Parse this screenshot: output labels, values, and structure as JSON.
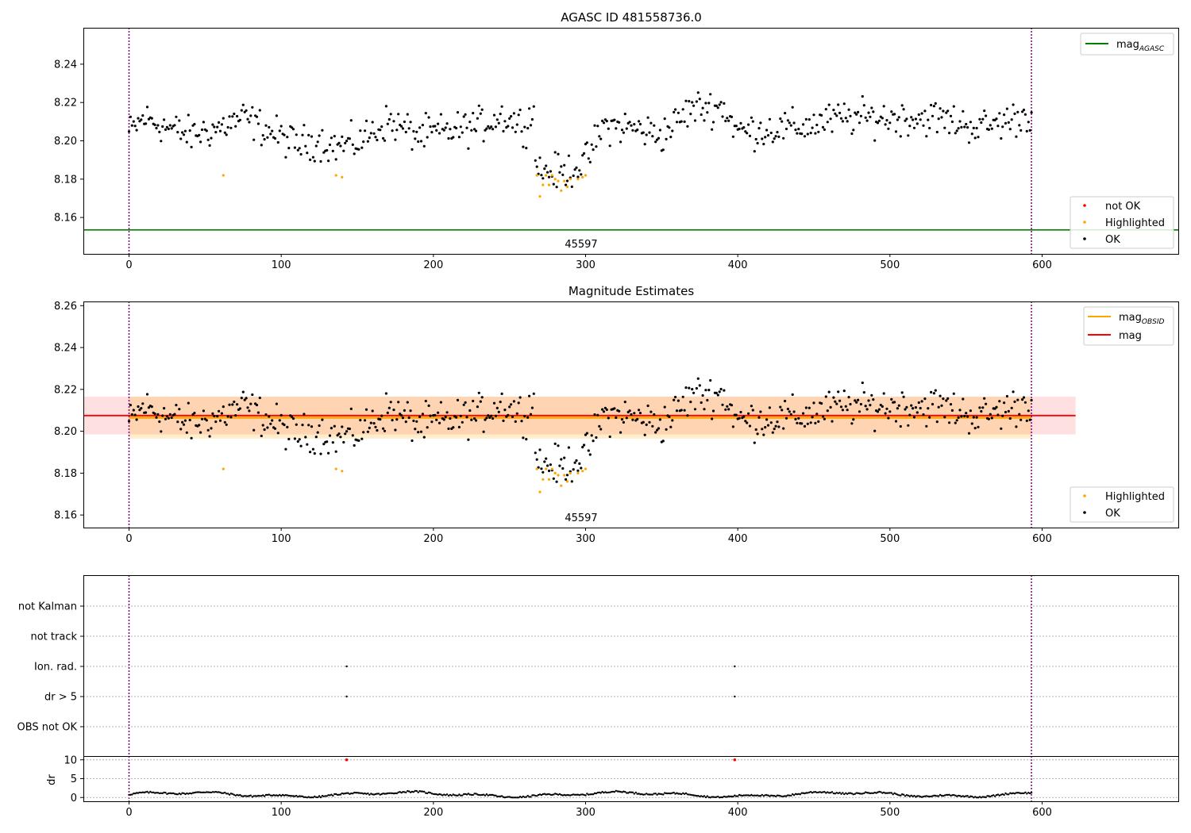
{
  "figure": {
    "panel1_title": "AGASC ID 481558736.0",
    "panel2_title": "Magnitude Estimates",
    "obsid_label": "45597"
  },
  "colors": {
    "ok": "#000000",
    "highlighted": "#ffa500",
    "not_ok": "#ff0000",
    "mag_agasc": "#008000",
    "mag_obsid": "#ffa500",
    "mag": "#ff0000",
    "obs_boundary": "#800080"
  },
  "chart_data": [
    {
      "type": "scatter",
      "title": "AGASC ID 481558736.0",
      "xlim": [
        -30,
        690
      ],
      "ylim": [
        8.141,
        8.259
      ],
      "xticks": [
        0,
        100,
        200,
        300,
        400,
        500,
        600
      ],
      "yticks": [
        8.16,
        8.18,
        8.2,
        8.22,
        8.24
      ],
      "obs_boundaries": [
        0,
        593
      ],
      "mag_agasc": 8.1535,
      "legend_lines": [
        {
          "label": "mag",
          "sub": "AGASC",
          "color": "#008000"
        }
      ],
      "legend_points": [
        {
          "label": "not OK",
          "color": "#ff0000"
        },
        {
          "label": "Highlighted",
          "color": "#ffa500"
        },
        {
          "label": "OK",
          "color": "#000000"
        }
      ],
      "series_note": "OK and Highlighted magnitudes vs sample index, n=594; generated from anchors below",
      "anchors_x": [
        0,
        10,
        25,
        40,
        60,
        75,
        90,
        110,
        125,
        135,
        150,
        170,
        190,
        210,
        230,
        245,
        260,
        266,
        268,
        285,
        300,
        312,
        330,
        350,
        370,
        390,
        400,
        420,
        440,
        470,
        500,
        530,
        560,
        593
      ],
      "anchors_y": [
        8.204,
        8.212,
        8.207,
        8.203,
        8.207,
        8.212,
        8.206,
        8.198,
        8.2,
        8.197,
        8.199,
        8.21,
        8.203,
        8.205,
        8.208,
        8.213,
        8.208,
        8.215,
        8.185,
        8.183,
        8.189,
        8.208,
        8.207,
        8.203,
        8.217,
        8.218,
        8.205,
        8.206,
        8.207,
        8.212,
        8.212,
        8.212,
        8.207,
        8.214
      ],
      "noise": 0.007,
      "highlighted_points": [
        [
          62,
          8.182
        ],
        [
          136,
          8.182
        ],
        [
          140,
          8.181
        ],
        [
          268,
          8.182
        ],
        [
          270,
          8.171
        ],
        [
          272,
          8.177
        ],
        [
          274,
          8.182
        ],
        [
          276,
          8.177
        ],
        [
          278,
          8.182
        ],
        [
          280,
          8.18
        ],
        [
          282,
          8.179
        ],
        [
          284,
          8.174
        ],
        [
          286,
          8.179
        ],
        [
          288,
          8.176
        ],
        [
          290,
          8.18
        ],
        [
          295,
          8.18
        ],
        [
          298,
          8.181
        ],
        [
          300,
          8.182
        ]
      ]
    },
    {
      "type": "scatter",
      "title": "Magnitude Estimates",
      "xlim": [
        -30,
        690
      ],
      "ylim": [
        8.154,
        8.262
      ],
      "xticks": [
        0,
        100,
        200,
        300,
        400,
        500,
        600
      ],
      "yticks": [
        8.16,
        8.18,
        8.2,
        8.22,
        8.24,
        8.26
      ],
      "mag": 8.2075,
      "mag_band": [
        8.1985,
        8.2165
      ],
      "mag_band_x": [
        -30,
        622
      ],
      "mag_obsid": 8.2065,
      "mag_obsid_band": [
        8.1965,
        8.2165
      ],
      "mag_obsid_band_x": [
        0,
        593
      ],
      "legend_lines": [
        {
          "label": "mag",
          "sub": "OBSID",
          "color": "#ffa500"
        },
        {
          "label": "mag",
          "sub": "",
          "color": "#ff0000"
        }
      ],
      "legend_points": [
        {
          "label": "Highlighted",
          "color": "#ffa500"
        },
        {
          "label": "OK",
          "color": "#000000"
        }
      ]
    },
    {
      "type": "scatter",
      "title": "",
      "xlim": [
        -30,
        690
      ],
      "flag_categories": [
        "OBS not OK",
        "dr > 5",
        "Ion. rad.",
        "not track",
        "not Kalman"
      ],
      "flag_points": [
        {
          "category": "Ion. rad.",
          "x": 143
        },
        {
          "category": "dr > 5",
          "x": 143
        },
        {
          "category": "Ion. rad.",
          "x": 398
        },
        {
          "category": "dr > 5",
          "x": 398
        }
      ],
      "dr_ylabel": "dr",
      "dr_ylim": [
        -1,
        11
      ],
      "dr_yticks": [
        0,
        5,
        10
      ],
      "dr_outliers": [
        {
          "x": 143,
          "y": 10
        },
        {
          "x": 398,
          "y": 10
        }
      ],
      "xticks": [
        0,
        100,
        200,
        300,
        400,
        500,
        600
      ]
    }
  ]
}
